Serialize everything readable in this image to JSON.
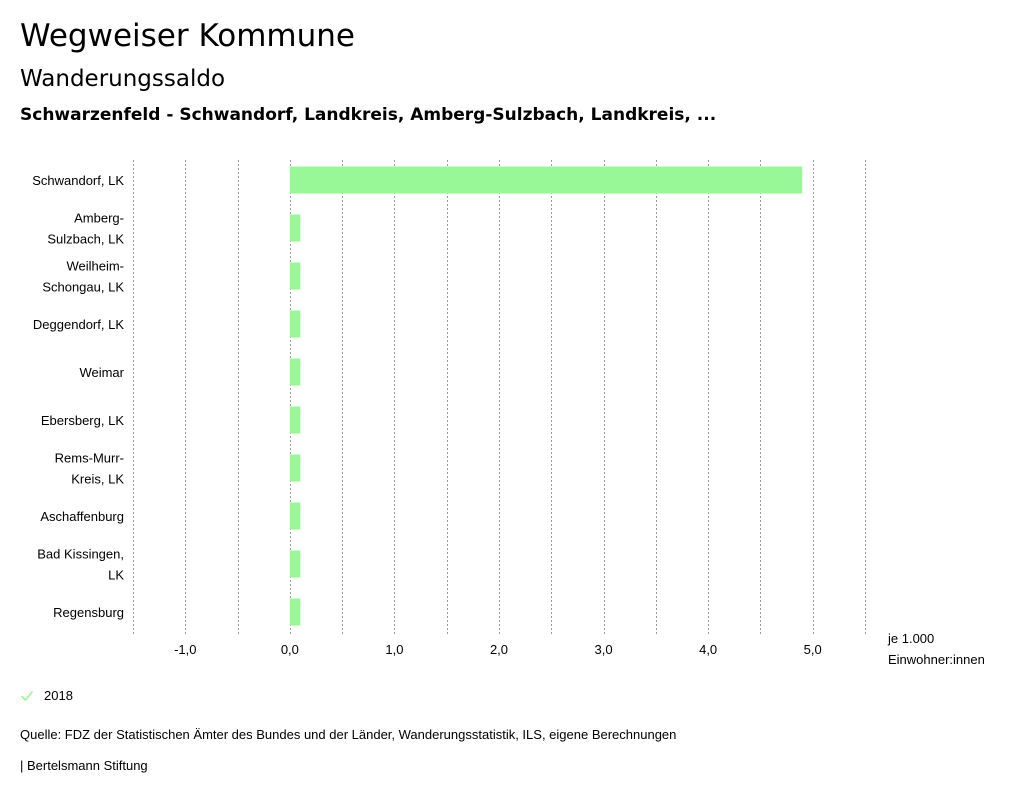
{
  "header": {
    "title": "Wegweiser Kommune",
    "subtitle": "Wanderungssaldo",
    "region": "Schwarzenfeld - Schwandorf, Landkreis, Amberg-Sulzbach, Landkreis, ..."
  },
  "legend": {
    "year": "2018",
    "color": "#98f898"
  },
  "footer": {
    "source": "Quelle: FDZ der Statistischen Ämter des Bundes und der Länder, Wanderungsstatistik, ILS, eigene Berechnungen",
    "publisher": "| Bertelsmann Stiftung"
  },
  "chart_data": {
    "type": "bar",
    "orientation": "horizontal",
    "title": "Wanderungssaldo",
    "categories": [
      "Schwandorf, LK",
      "Amberg-Sulzbach, LK",
      "Weilheim-Schongau, LK",
      "Deggendorf, LK",
      "Weimar",
      "Ebersberg, LK",
      "Rems-Murr-Kreis, LK",
      "Aschaffenburg",
      "Bad Kissingen, LK",
      "Regensburg"
    ],
    "category_lines": [
      [
        "Schwandorf, LK"
      ],
      [
        "Amberg-",
        "Sulzbach, LK"
      ],
      [
        "Weilheim-",
        "Schongau, LK"
      ],
      [
        "Deggendorf, LK"
      ],
      [
        "Weimar"
      ],
      [
        "Ebersberg, LK"
      ],
      [
        "Rems-Murr-",
        "Kreis, LK"
      ],
      [
        "Aschaffenburg"
      ],
      [
        "Bad Kissingen,",
        "LK"
      ],
      [
        "Regensburg"
      ]
    ],
    "series": [
      {
        "name": "2018",
        "values": [
          4.9,
          0.1,
          0.1,
          0.1,
          0.1,
          0.1,
          0.1,
          0.1,
          0.1,
          0.1
        ]
      }
    ],
    "xlim": [
      -1.5,
      5.5
    ],
    "major_ticks": [
      -1.0,
      0.0,
      1.0,
      2.0,
      3.0,
      4.0,
      5.0
    ],
    "tick_labels": [
      "-1,0",
      "0,0",
      "1,0",
      "2,0",
      "3,0",
      "4,0",
      "5,0"
    ],
    "grid_values": [
      -1.5,
      -1.0,
      -0.5,
      0.0,
      0.5,
      1.0,
      1.5,
      2.0,
      2.5,
      3.0,
      3.5,
      4.0,
      4.5,
      5.0,
      5.5
    ],
    "unit_lines": [
      "je 1.000",
      "Einwohner:innen"
    ]
  }
}
